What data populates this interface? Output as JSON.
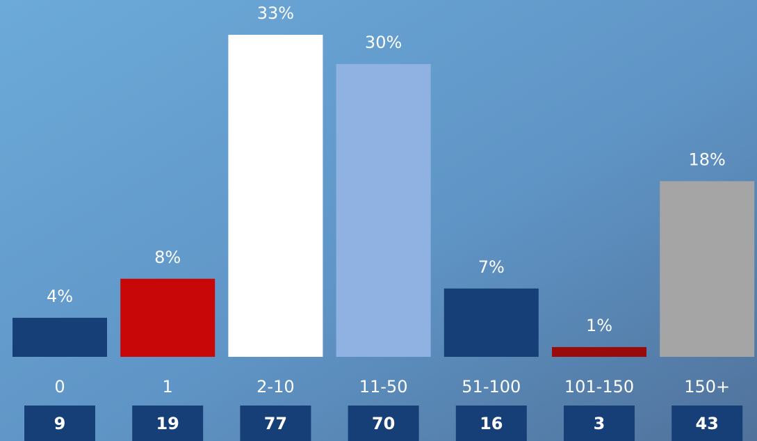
{
  "chart_data": {
    "type": "bar",
    "categories": [
      "0",
      "1",
      "2-10",
      "11-50",
      "51-100",
      "101-150",
      "150+"
    ],
    "values": [
      4,
      8,
      33,
      30,
      7,
      1,
      18
    ],
    "value_labels": [
      "4%",
      "8%",
      "33%",
      "30%",
      "7%",
      "1%",
      "18%"
    ],
    "colors": [
      "#163f78",
      "#c80808",
      "#ffffff",
      "#8fb2e2",
      "#163f78",
      "#990a0a",
      "#a5a5a5"
    ],
    "counts": [
      9,
      19,
      77,
      70,
      16,
      3,
      43
    ]
  }
}
